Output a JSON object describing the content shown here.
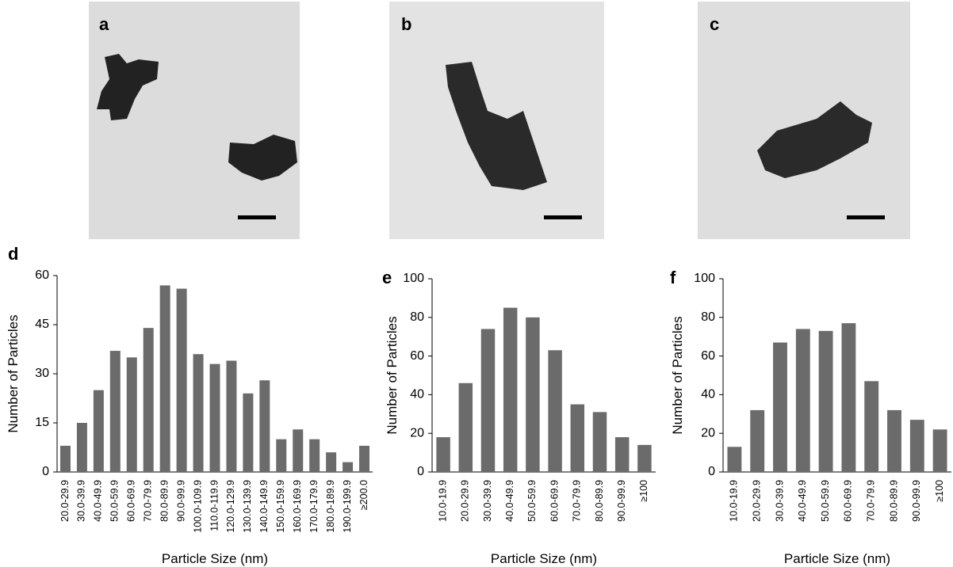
{
  "image_panels": [
    {
      "label": "a"
    },
    {
      "label": "b"
    },
    {
      "label": "c"
    }
  ],
  "chart_data": [
    {
      "type": "bar",
      "panel_label": "d",
      "x_label": "Particle Size (nm)",
      "y_label": "Number of Particles",
      "color": "#6b6b6b",
      "categories": [
        "20.0-29.9",
        "30.0-39.9",
        "40.0-49.9",
        "50.0-59.9",
        "60.0-69.9",
        "70.0-79.9",
        "80.0-89.9",
        "90.0-99.9",
        "100.0-109.9",
        "110.0-119.9",
        "120.0-129.9",
        "130.0-139.9",
        "140.0-149.9",
        "150.0-159.9",
        "160.0-169.9",
        "170.0-179.9",
        "180.0-189.9",
        "190.0-199.9",
        "≥200.0"
      ],
      "values": [
        8,
        15,
        25,
        37,
        35,
        44,
        57,
        56,
        36,
        33,
        34,
        24,
        28,
        10,
        13,
        10,
        6,
        3,
        8
      ],
      "ylim": [
        0,
        60
      ],
      "yticks": [
        0,
        15,
        30,
        45,
        60
      ]
    },
    {
      "type": "bar",
      "panel_label": "e",
      "x_label": "Particle Size (nm)",
      "y_label": "Number of Particles",
      "color": "#6b6b6b",
      "categories": [
        "10.0-19.9",
        "20.0-29.9",
        "30.0-39.9",
        "40.0-49.9",
        "50.0-59.9",
        "60.0-69.9",
        "70.0-79.9",
        "80.0-89.9",
        "90.0-99.9",
        "≥100"
      ],
      "values": [
        18,
        46,
        74,
        85,
        80,
        63,
        35,
        31,
        18,
        14
      ],
      "ylim": [
        0,
        100
      ],
      "yticks": [
        0,
        20,
        40,
        60,
        80,
        100
      ]
    },
    {
      "type": "bar",
      "panel_label": "f",
      "x_label": "Particle Size (nm)",
      "y_label": "Number of Particles",
      "color": "#6b6b6b",
      "categories": [
        "10.0-19.9",
        "20.0-29.9",
        "30.0-39.9",
        "40.0-49.9",
        "50.0-59.9",
        "60.0-69.9",
        "70.0-79.9",
        "80.0-89.9",
        "90.0-99.9",
        "≥100"
      ],
      "values": [
        13,
        32,
        67,
        74,
        73,
        77,
        47,
        32,
        27,
        22
      ],
      "ylim": [
        0,
        100
      ],
      "yticks": [
        0,
        20,
        40,
        60,
        80,
        100
      ]
    }
  ]
}
